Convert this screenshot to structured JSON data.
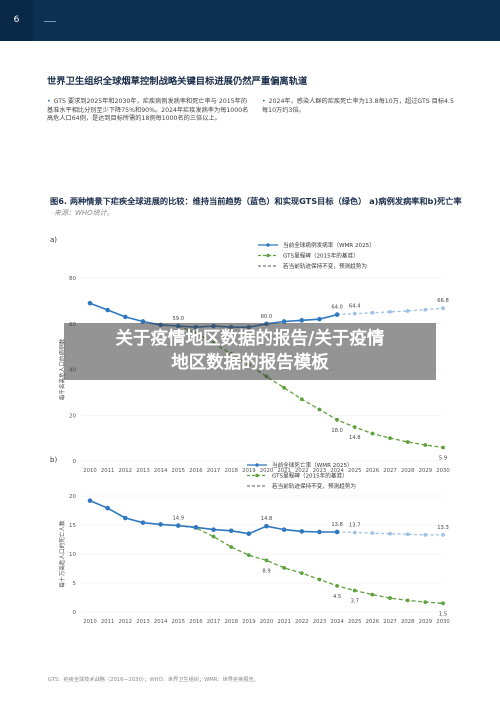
{
  "header": {
    "page_number": "6"
  },
  "heading": "世界卫生组织全球烟草控制战略关键目标进展仍然严重偏离轨道",
  "bullets": [
    "GTS 要求到2025年和2030年，疟疾病例发病率和死亡率与 2015年的基准水平相比分别至少下降75%和90%。2024年疟疾发病率为每1000名高危人口64例，是达到目标所需的18例每1000名的三倍以上。",
    "2024年，感染人群的疟疾死亡率为13.8每10万，超过GTS 目标4.5每10万约3倍。"
  ],
  "figure": {
    "title": "图6. 两种情景下疟疾全球进展的比较：维持当前趋势（蓝色）和实现GTS目标（绿色） a)病例发病率和b)死亡率",
    "source": "来源：WHO统计。"
  },
  "chart_data": [
    {
      "panel": "a)",
      "type": "line",
      "ylabel": "每千名高危人口的病例数",
      "yticks": [
        0,
        20,
        40,
        60,
        80
      ],
      "ylim": [
        0,
        80
      ],
      "x": [
        2010,
        2011,
        2012,
        2013,
        2014,
        2015,
        2016,
        2017,
        2018,
        2019,
        2020,
        2021,
        2022,
        2023,
        2024,
        2025,
        2026,
        2027,
        2028,
        2029,
        2030
      ],
      "legend": [
        "当前全球病例发病率（WMR 2025）",
        "GTS里程碑（2015年的基准）",
        "若当前轨迹保持不变，预测趋势为"
      ],
      "series": [
        {
          "name": "当前全球病例发病率（WMR 2025）",
          "color": "#2f78bf",
          "style": "solid",
          "x": [
            2010,
            2011,
            2012,
            2013,
            2014,
            2015,
            2016,
            2017,
            2018,
            2019,
            2020,
            2021,
            2022,
            2023,
            2024
          ],
          "values": [
            69,
            66,
            63,
            61,
            59.5,
            59.0,
            58.5,
            59,
            58.5,
            58.5,
            60.0,
            61,
            61.5,
            62,
            64.0
          ]
        },
        {
          "name": "GTS里程碑（2015年的基准）",
          "color": "#5ea13c",
          "style": "dashed",
          "x": [
            2015,
            2016,
            2017,
            2018,
            2019,
            2020,
            2021,
            2022,
            2023,
            2024,
            2025,
            2026,
            2027,
            2028,
            2029,
            2030
          ],
          "values": [
            59.0,
            56,
            51.5,
            46.8,
            42,
            37,
            32,
            27,
            22.5,
            18.0,
            14.8,
            12,
            10,
            8.3,
            7,
            5.9
          ]
        },
        {
          "name": "若当前轨迹保持不变，预测趋势为",
          "color": "#9ec1e6",
          "style": "dashed",
          "x": [
            2024,
            2025,
            2026,
            2027,
            2028,
            2029,
            2030
          ],
          "values": [
            64.0,
            64.4,
            64.8,
            65.2,
            65.6,
            66.1,
            66.8
          ]
        }
      ],
      "labels": [
        {
          "x": 2015,
          "y": 59.0,
          "text": "59.0"
        },
        {
          "x": 2020,
          "y": 60.0,
          "text": "60.0"
        },
        {
          "x": 2024,
          "y": 64.0,
          "text": "64.0"
        },
        {
          "x": 2025,
          "y": 64.4,
          "text": "64.4"
        },
        {
          "x": 2030,
          "y": 66.8,
          "text": "66.8"
        },
        {
          "x": 2024,
          "y": 18.0,
          "text": "18.0"
        },
        {
          "x": 2025,
          "y": 14.8,
          "text": "14.8"
        },
        {
          "x": 2030,
          "y": 5.9,
          "text": "5.9"
        }
      ]
    },
    {
      "panel": "b)",
      "type": "line",
      "ylabel": "每十万高危人口的死亡人数",
      "yticks": [
        0,
        5,
        10,
        15,
        20
      ],
      "ylim": [
        0,
        20
      ],
      "x": [
        2010,
        2011,
        2012,
        2013,
        2014,
        2015,
        2016,
        2017,
        2018,
        2019,
        2020,
        2021,
        2022,
        2023,
        2024,
        2025,
        2026,
        2027,
        2028,
        2029,
        2030
      ],
      "legend": [
        "当前全球死亡率（WMR 2025）",
        "GTS里程碑（2015年的基准）",
        "若当前轨迹保持不变，预测趋势为"
      ],
      "series": [
        {
          "name": "当前全球死亡率（WMR 2025）",
          "color": "#2f78bf",
          "style": "solid",
          "x": [
            2010,
            2011,
            2012,
            2013,
            2014,
            2015,
            2016,
            2017,
            2018,
            2019,
            2020,
            2021,
            2022,
            2023,
            2024
          ],
          "values": [
            19.2,
            17.9,
            16.2,
            15.4,
            15.1,
            14.9,
            14.6,
            14.2,
            14.0,
            13.5,
            14.8,
            14.2,
            13.9,
            13.8,
            13.8
          ]
        },
        {
          "name": "GTS里程碑（2015年的基准）",
          "color": "#5ea13c",
          "style": "dashed",
          "x": [
            2015,
            2016,
            2017,
            2018,
            2019,
            2020,
            2021,
            2022,
            2023,
            2024,
            2025,
            2026,
            2027,
            2028,
            2029,
            2030
          ],
          "values": [
            14.9,
            14.5,
            13.0,
            11.2,
            9.8,
            8.9,
            7.6,
            6.7,
            5.6,
            4.5,
            3.7,
            3.0,
            2.4,
            2.0,
            1.7,
            1.5
          ]
        },
        {
          "name": "若当前轨迹保持不变，预测趋势为",
          "color": "#9ec1e6",
          "style": "dashed",
          "x": [
            2024,
            2025,
            2026,
            2027,
            2028,
            2029,
            2030
          ],
          "values": [
            13.8,
            13.7,
            13.6,
            13.5,
            13.4,
            13.3,
            13.3
          ]
        }
      ],
      "labels": [
        {
          "x": 2015,
          "y": 14.9,
          "text": "14.9"
        },
        {
          "x": 2020,
          "y": 14.8,
          "text": "14.8"
        },
        {
          "x": 2024,
          "y": 13.8,
          "text": "13.8"
        },
        {
          "x": 2025,
          "y": 13.7,
          "text": "13.7"
        },
        {
          "x": 2030,
          "y": 13.3,
          "text": "13.3"
        },
        {
          "x": 2020,
          "y": 8.9,
          "text": "8.9"
        },
        {
          "x": 2024,
          "y": 4.5,
          "text": "4.5"
        },
        {
          "x": 2025,
          "y": 3.7,
          "text": "3.7"
        },
        {
          "x": 2030,
          "y": 1.5,
          "text": "1.5"
        }
      ]
    }
  ],
  "footer": "GTS：疟疾全球技术战略（2016—2030）；WHO：世界卫生组织；WMR：世界疟疾报告。",
  "banner": {
    "line1": "关于疫情地区数据的报告/关于疫情",
    "line2": "地区数据的报告模板"
  }
}
